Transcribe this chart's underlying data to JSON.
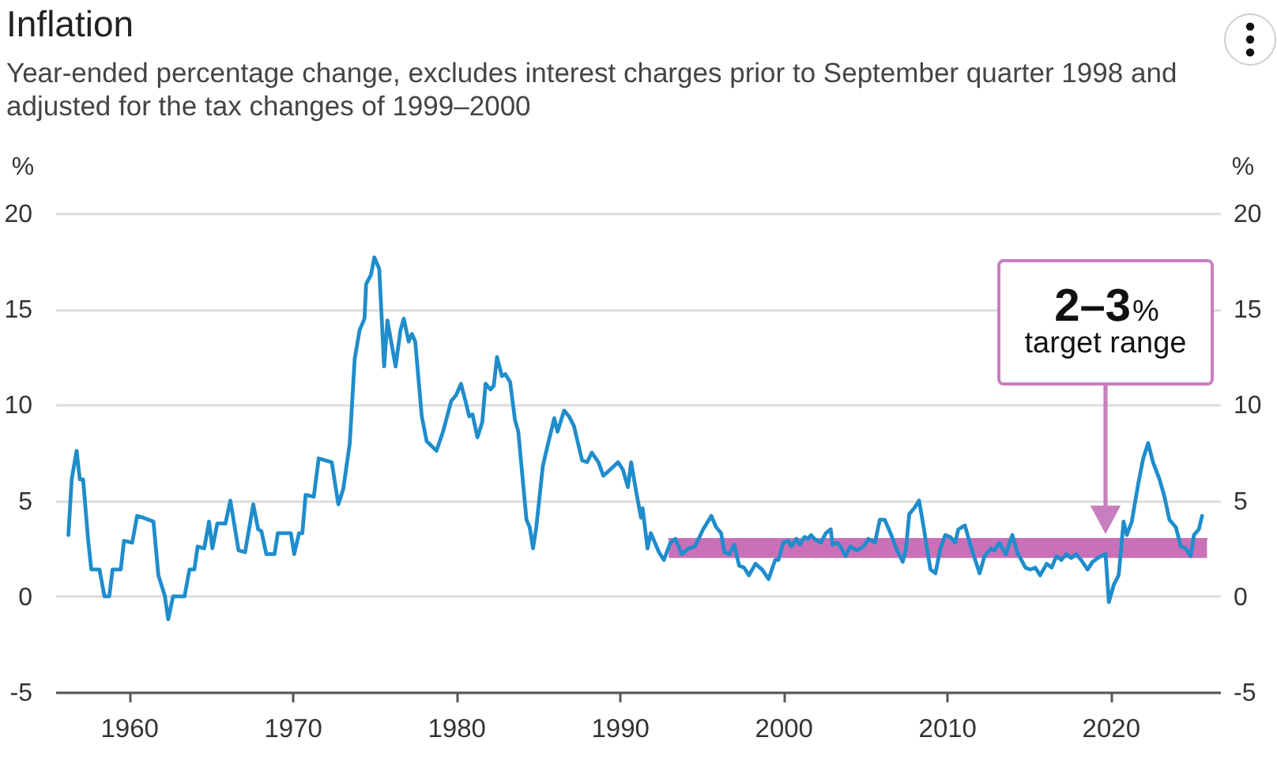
{
  "chart_data": {
    "type": "line",
    "title": "Inflation",
    "subtitle": "Year-ended percentage change, excludes interest charges prior to September quarter 1998 and adjusted for the tax changes of 1999–2000",
    "ylabel": "%",
    "y2label": "%",
    "x": [
      1956.3,
      1956.5,
      1956.8,
      1957.0,
      1957.2,
      1957.5,
      1957.7,
      1958.2,
      1958.5,
      1958.8,
      1959.0,
      1959.5,
      1959.7,
      1960.2,
      1960.5,
      1960.9,
      1961.5,
      1961.8,
      1962.2,
      1962.4,
      1962.7,
      1963.4,
      1963.7,
      1964.0,
      1964.2,
      1964.6,
      1964.9,
      1965.1,
      1965.4,
      1965.9,
      1966.2,
      1966.7,
      1967.1,
      1967.6,
      1967.9,
      1968.1,
      1968.4,
      1968.9,
      1969.1,
      1969.9,
      1970.1,
      1970.4,
      1970.6,
      1970.8,
      1971.3,
      1971.6,
      1972.4,
      1972.8,
      1973.1,
      1973.5,
      1973.8,
      1974.1,
      1974.4,
      1974.5,
      1974.8,
      1975.0,
      1975.3,
      1975.6,
      1975.8,
      1976.3,
      1976.6,
      1976.8,
      1977.1,
      1977.3,
      1977.5,
      1977.9,
      1978.2,
      1978.8,
      1979.2,
      1979.7,
      1980.0,
      1980.3,
      1980.6,
      1980.8,
      1981.0,
      1981.3,
      1981.6,
      1981.8,
      1982.1,
      1982.3,
      1982.5,
      1982.8,
      1983.0,
      1983.3,
      1983.6,
      1983.8,
      1984.3,
      1984.5,
      1984.7,
      1984.9,
      1985.3,
      1985.6,
      1986.0,
      1986.2,
      1986.6,
      1986.9,
      1987.2,
      1987.7,
      1988.0,
      1988.3,
      1988.7,
      1989.0,
      1989.4,
      1989.9,
      1990.2,
      1990.5,
      1990.7,
      1991.0,
      1991.3,
      1991.4,
      1991.7,
      1991.9,
      1992.4,
      1992.7,
      1993.1,
      1993.4,
      1993.8,
      1994.2,
      1994.6,
      1995.1,
      1995.6,
      1995.9,
      1996.2,
      1996.4,
      1996.7,
      1997.0,
      1997.3,
      1997.6,
      1997.9,
      1998.3,
      1998.7,
      1999.1,
      1999.5,
      1999.7,
      2000.0,
      2000.3,
      2000.5,
      2000.8,
      2001.0,
      2001.3,
      2001.5,
      2001.7,
      2001.9,
      2002.3,
      2002.6,
      2002.9,
      2003.0,
      2003.3,
      2003.5,
      2003.8,
      2004.1,
      2004.5,
      2004.9,
      2005.2,
      2005.4,
      2005.6,
      2005.9,
      2006.2,
      2006.6,
      2006.9,
      2007.3,
      2007.5,
      2007.7,
      2008.0,
      2008.3,
      2008.6,
      2008.8,
      2009.0,
      2009.3,
      2009.6,
      2009.9,
      2010.2,
      2010.5,
      2010.7,
      2011.1,
      2011.2,
      2011.5,
      2012.0,
      2012.3,
      2012.7,
      2012.9,
      2013.2,
      2013.6,
      2014.0,
      2014.3,
      2014.8,
      2015.1,
      2015.4,
      2015.7,
      2016.1,
      2016.4,
      2016.7,
      2017.0,
      2017.3,
      2017.6,
      2017.9,
      2018.2,
      2018.6,
      2018.9,
      2019.4,
      2019.7,
      2019.9,
      2020.2,
      2020.5,
      2020.8,
      2021.0,
      2021.3,
      2021.7,
      2022.0,
      2022.3,
      2022.6,
      2023.0,
      2023.3,
      2023.6,
      2024.0,
      2024.3,
      2024.6,
      2024.9,
      2025.1,
      2025.4,
      2025.6
    ],
    "series": [
      {
        "type": "line",
        "color": "#c970b9",
        "x": [
          1993.0,
          2025.9
        ],
        "values": [
          3,
          3
        ],
        "lower": [
          2,
          2
        ],
        "upper": [
          3,
          3
        ]
      },
      {
        "color": "#1f8dcc",
        "values": [
          3.2,
          6.1,
          7.6,
          6.1,
          6.1,
          3.0,
          1.4,
          1.4,
          0.0,
          0.0,
          1.4,
          1.4,
          2.9,
          2.8,
          4.2,
          4.1,
          3.9,
          1.1,
          0.0,
          -1.2,
          0.0,
          0.0,
          1.4,
          1.4,
          2.6,
          2.5,
          3.9,
          2.5,
          3.8,
          3.8,
          5.0,
          2.4,
          2.3,
          4.8,
          3.5,
          3.4,
          2.2,
          2.2,
          3.3,
          3.3,
          2.2,
          3.3,
          3.3,
          5.3,
          5.2,
          7.2,
          7.0,
          4.8,
          5.6,
          8.0,
          12.4,
          13.9,
          14.5,
          16.3,
          16.8,
          17.7,
          17.1,
          12.0,
          14.4,
          12.0,
          13.9,
          14.5,
          13.3,
          13.7,
          13.3,
          9.4,
          8.1,
          7.6,
          8.6,
          10.2,
          10.5,
          11.1,
          10.1,
          9.4,
          9.5,
          8.3,
          9.1,
          11.1,
          10.8,
          11.0,
          12.5,
          11.5,
          11.6,
          11.2,
          9.2,
          8.6,
          4.0,
          3.6,
          2.5,
          3.6,
          6.8,
          7.9,
          9.3,
          8.6,
          9.7,
          9.4,
          8.9,
          7.1,
          7.0,
          7.5,
          7.0,
          6.3,
          6.6,
          7.0,
          6.6,
          5.7,
          7.0,
          5.5,
          4.1,
          4.6,
          2.5,
          3.3,
          2.3,
          1.9,
          2.8,
          3.0,
          2.2,
          2.5,
          2.6,
          3.5,
          4.2,
          3.6,
          3.3,
          2.3,
          2.2,
          2.7,
          1.6,
          1.5,
          1.1,
          1.7,
          1.4,
          0.9,
          1.9,
          1.9,
          2.8,
          2.9,
          2.6,
          3.0,
          2.7,
          3.1,
          3.0,
          3.2,
          3.0,
          2.8,
          3.3,
          3.5,
          2.7,
          2.8,
          2.6,
          2.1,
          2.6,
          2.4,
          2.6,
          3.0,
          2.9,
          2.8,
          4.0,
          4.0,
          3.2,
          2.5,
          1.8,
          2.5,
          4.3,
          4.6,
          5.0,
          3.5,
          2.4,
          1.4,
          1.2,
          2.5,
          3.2,
          3.1,
          2.8,
          3.5,
          3.7,
          3.4,
          2.5,
          1.2,
          2.1,
          2.5,
          2.4,
          2.8,
          2.2,
          3.2,
          2.3,
          1.5,
          1.4,
          1.5,
          1.1,
          1.7,
          1.5,
          2.1,
          1.9,
          2.2,
          2.0,
          2.2,
          1.9,
          1.4,
          1.8,
          2.1,
          2.2,
          -0.3,
          0.6,
          1.1,
          3.9,
          3.2,
          3.9,
          5.9,
          7.2,
          8.0,
          7.0,
          6.1,
          5.2,
          4.0,
          3.6,
          2.6,
          2.5,
          2.1,
          3.2,
          3.5,
          4.2
        ]
      }
    ],
    "xlim": [
      1955.5,
      2026.7
    ],
    "xticks": [
      1960,
      1970,
      1980,
      1990,
      2000,
      2010,
      2020
    ],
    "ylim": [
      -5,
      20
    ],
    "yticks": [
      -5,
      0,
      5,
      10,
      15,
      20
    ],
    "y2lim": [
      -5,
      20
    ],
    "y2ticks": [
      -5,
      0,
      5,
      10,
      15,
      20
    ],
    "grid": "y",
    "annotations": [
      "2–3% target range"
    ]
  }
}
